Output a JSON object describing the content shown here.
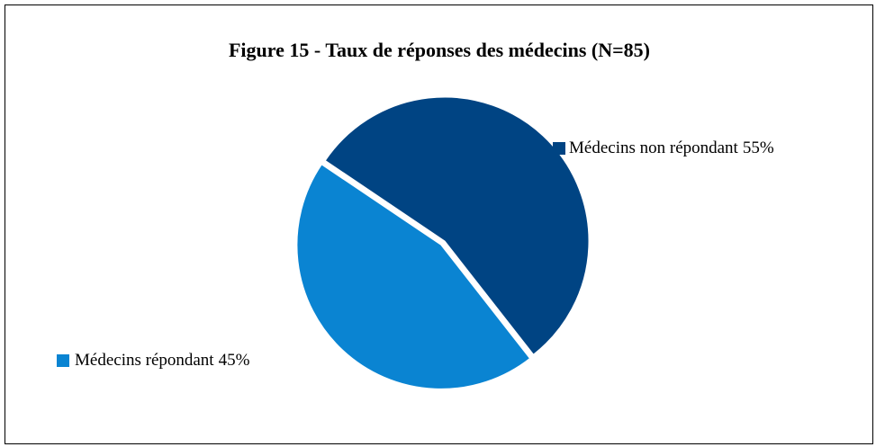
{
  "chart_data": {
    "type": "pie",
    "title": "Figure 15 - Taux de réponses des médecins (N=85)",
    "categories": [
      "Médecins non répondant",
      "Médecins répondant"
    ],
    "values": [
      55,
      45
    ],
    "value_labels": [
      "55%",
      "45%"
    ],
    "colors": [
      "#004483",
      "#0a84d2"
    ]
  }
}
